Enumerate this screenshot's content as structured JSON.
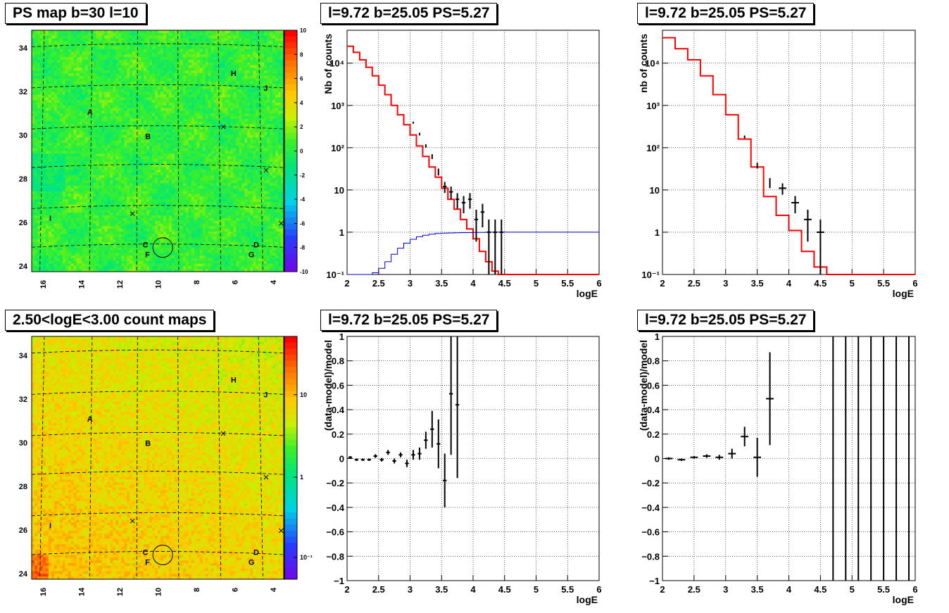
{
  "panels": {
    "map_top": {
      "title": "PS map b=30 l=10",
      "x_ticks": [
        "16",
        "14",
        "12",
        "10",
        "8",
        "6",
        "4"
      ],
      "y_ticks": [
        "24",
        "26",
        "28",
        "30",
        "32",
        "34"
      ],
      "colorbar_ticks": [
        "10",
        "8",
        "6",
        "4",
        "2",
        "0",
        "-2",
        "-4",
        "-6",
        "-8",
        "-10"
      ],
      "colorbar_range": [
        -10,
        10
      ],
      "source_labels": [
        "A",
        "B",
        "C",
        "D",
        "F",
        "G",
        "H",
        "I",
        "J"
      ]
    },
    "map_bottom": {
      "title": "2.50<logE<3.00 count maps",
      "x_ticks": [
        "16",
        "14",
        "12",
        "10",
        "8",
        "6",
        "4"
      ],
      "y_ticks": [
        "24",
        "26",
        "28",
        "30",
        "32",
        "34"
      ],
      "colorbar_ticks": [
        "10",
        "1",
        "10⁻¹"
      ],
      "source_labels": [
        "A",
        "B",
        "C",
        "D",
        "F",
        "G",
        "H",
        "I",
        "J"
      ]
    }
  },
  "chart_data": [
    {
      "type": "line",
      "title": "l=9.72 b=25.05 PS=5.27",
      "xlabel": "logE",
      "ylabel": "Nb of counts",
      "xlim": [
        2,
        6
      ],
      "ylim": [
        0.1,
        60000
      ],
      "yscale": "log",
      "grid": true,
      "x_ticks": [
        "2",
        "2.5",
        "3",
        "3.5",
        "4",
        "4.5",
        "5",
        "5.5",
        "6"
      ],
      "y_ticks": [
        "10⁻¹",
        "1",
        "10",
        "10²",
        "10³",
        "10⁴"
      ],
      "series": [
        {
          "style": "step",
          "color": "#ff0000",
          "x": [
            2.0,
            2.1,
            2.2,
            2.3,
            2.4,
            2.5,
            2.6,
            2.7,
            2.8,
            2.9,
            3.0,
            3.1,
            3.2,
            3.3,
            3.4,
            3.5,
            3.6,
            3.7,
            3.8,
            3.9,
            4.0,
            4.1,
            4.2,
            4.3,
            4.4,
            4.5,
            4.6,
            4.7,
            4.8,
            4.9,
            5.0,
            5.1,
            5.2,
            5.3,
            5.4,
            5.5,
            5.6,
            5.7,
            5.8,
            5.9
          ],
          "values": [
            25000,
            18000,
            12000,
            8000,
            5000,
            3000,
            1800,
            1000,
            600,
            350,
            200,
            110,
            62,
            35,
            20,
            11,
            6,
            3.5,
            2,
            1.2,
            0.7,
            0.35,
            0.2,
            0.12,
            0.1,
            0.1,
            0.1,
            0.1,
            0.1,
            0.1,
            0.1,
            0.1,
            0.1,
            0.1,
            0.1,
            0.1,
            0.1,
            0.1,
            0.1,
            0.1
          ]
        },
        {
          "style": "step",
          "color": "#0000cc",
          "x": [
            2.0,
            2.1,
            2.2,
            2.3,
            2.4,
            2.5,
            2.6,
            2.7,
            2.8,
            2.9,
            3.0,
            3.1,
            3.2,
            3.3,
            3.4,
            3.5,
            3.6,
            3.7,
            3.8,
            3.9,
            4.0,
            4.1,
            4.2,
            4.3,
            4.4,
            4.5,
            4.6,
            4.7,
            4.8,
            4.9,
            5.0,
            5.1,
            5.2,
            5.3,
            5.4,
            5.5,
            5.6,
            5.7,
            5.8,
            5.9
          ],
          "values": [
            0.1,
            0.1,
            0.1,
            0.1,
            0.11,
            0.14,
            0.2,
            0.3,
            0.42,
            0.55,
            0.68,
            0.78,
            0.85,
            0.9,
            0.93,
            0.95,
            0.96,
            0.97,
            0.98,
            0.98,
            0.99,
            0.99,
            1,
            1,
            1,
            1,
            1,
            1,
            1,
            1,
            1,
            1,
            1,
            1,
            1,
            1,
            1,
            1,
            1,
            1
          ]
        },
        {
          "style": "errorbar",
          "color": "#000000",
          "x": [
            3.05,
            3.15,
            3.25,
            3.35,
            3.45,
            3.55,
            3.65,
            3.75,
            3.85,
            3.95,
            4.05,
            4.15,
            4.25,
            4.35,
            4.45
          ],
          "values": [
            390,
            210,
            110,
            62,
            27,
            12,
            9,
            6,
            5,
            6,
            2,
            3,
            1,
            1,
            1
          ],
          "err": [
            20,
            15,
            10,
            8,
            5,
            3.5,
            3,
            2.4,
            2.2,
            2.4,
            1.4,
            1.7,
            1,
            1,
            1
          ]
        }
      ]
    },
    {
      "type": "line",
      "title": "l=9.72 b=25.05 PS=5.27",
      "xlabel": "logE",
      "ylabel": "nb of counts",
      "xlim": [
        2,
        6
      ],
      "ylim": [
        0.1,
        60000
      ],
      "yscale": "log",
      "grid": true,
      "x_ticks": [
        "2",
        "2.5",
        "3",
        "3.5",
        "4",
        "4.5",
        "5",
        "5.5",
        "6"
      ],
      "y_ticks": [
        "10⁻¹",
        "1",
        "10",
        "10²",
        "10³",
        "10⁴"
      ],
      "series": [
        {
          "style": "step",
          "color": "#ff0000",
          "x": [
            2.0,
            2.2,
            2.4,
            2.6,
            2.8,
            3.0,
            3.2,
            3.4,
            3.6,
            3.8,
            4.0,
            4.2,
            4.4,
            4.6,
            4.8,
            5.0,
            5.2,
            5.4,
            5.6,
            5.8
          ],
          "values": [
            40000,
            22000,
            12000,
            5000,
            1800,
            600,
            160,
            35,
            7,
            2.5,
            1.1,
            0.35,
            0.15,
            0.1,
            0.1,
            0.1,
            0.1,
            0.1,
            0.1,
            0.1
          ]
        },
        {
          "style": "errorbar",
          "color": "#000000",
          "x": [
            3.3,
            3.5,
            3.7,
            3.9,
            4.1,
            4.3,
            4.5
          ],
          "values": [
            180,
            38,
            15,
            11,
            5,
            2,
            1
          ],
          "err": [
            14,
            6,
            4,
            3.3,
            2.2,
            1.4,
            1
          ]
        }
      ]
    },
    {
      "type": "scatter",
      "title": "l=9.72 b=25.05 PS=5.27",
      "xlabel": "logE",
      "ylabel": "(data-model)/model",
      "xlim": [
        2,
        6
      ],
      "ylim": [
        -1,
        1
      ],
      "grid": true,
      "x_ticks": [
        "2",
        "2.5",
        "3",
        "3.5",
        "4",
        "4.5",
        "5",
        "5.5",
        "6"
      ],
      "y_ticks": [
        "−1",
        "−0.8",
        "−0.6",
        "−0.4",
        "−0.2",
        "0",
        "0.2",
        "0.4",
        "0.6",
        "0.8",
        "1"
      ],
      "series": [
        {
          "style": "errorbar",
          "color": "#000000",
          "x": [
            2.05,
            2.15,
            2.25,
            2.35,
            2.45,
            2.55,
            2.65,
            2.75,
            2.85,
            2.95,
            3.05,
            3.15,
            3.25,
            3.35,
            3.45,
            3.55,
            3.65,
            3.75
          ],
          "values": [
            0.01,
            -0.01,
            -0.01,
            -0.01,
            0.02,
            -0.01,
            0.05,
            -0.02,
            0.03,
            -0.04,
            0.03,
            0.04,
            0.15,
            0.24,
            0.12,
            -0.18,
            0.53,
            0.44
          ],
          "err": [
            0.01,
            0.01,
            0.01,
            0.01,
            0.015,
            0.015,
            0.02,
            0.02,
            0.02,
            0.03,
            0.04,
            0.05,
            0.07,
            0.15,
            0.2,
            0.22,
            0.5,
            0.6
          ]
        }
      ]
    },
    {
      "type": "scatter",
      "title": "l=9.72 b=25.05 PS=5.27",
      "xlabel": "logE",
      "ylabel": "(data-model)/model",
      "xlim": [
        2,
        6
      ],
      "ylim": [
        -1,
        1
      ],
      "grid": true,
      "x_ticks": [
        "2",
        "2.5",
        "3",
        "3.5",
        "4",
        "4.5",
        "5",
        "5.5",
        "6"
      ],
      "y_ticks": [
        "−1",
        "−0.8",
        "−0.6",
        "−0.4",
        "−0.2",
        "0",
        "0.2",
        "0.4",
        "0.6",
        "0.8",
        "1"
      ],
      "series": [
        {
          "style": "errorbar",
          "color": "#000000",
          "x": [
            2.1,
            2.3,
            2.5,
            2.7,
            2.9,
            3.1,
            3.3,
            3.5,
            3.7,
            4.7,
            4.9,
            5.1,
            5.3,
            5.5,
            5.7,
            5.9
          ],
          "values": [
            0.0,
            -0.01,
            0.01,
            0.02,
            0.01,
            0.04,
            0.18,
            0.01,
            0.49,
            0,
            0,
            0,
            0,
            0,
            0,
            0
          ],
          "err": [
            0.01,
            0.01,
            0.01,
            0.015,
            0.02,
            0.04,
            0.08,
            0.16,
            0.38,
            5,
            5,
            5,
            5,
            5,
            5,
            5
          ]
        }
      ]
    }
  ]
}
